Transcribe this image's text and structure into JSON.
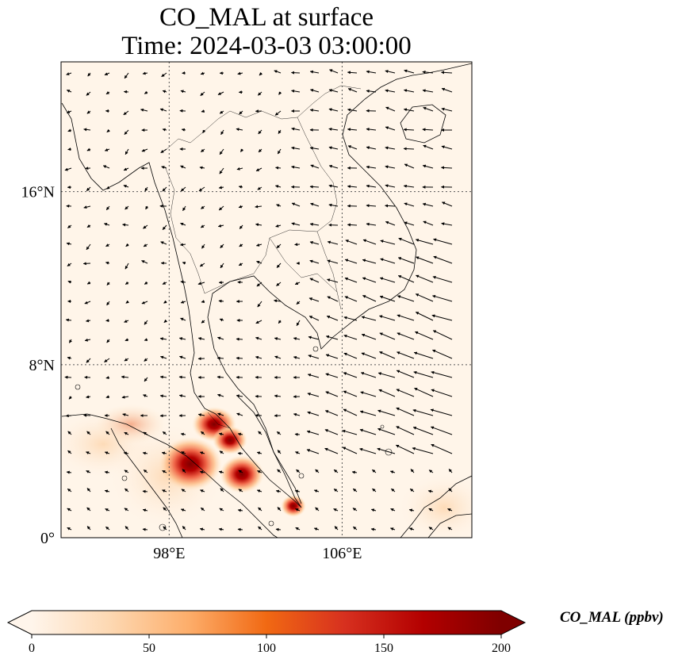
{
  "title": {
    "line1": "CO_MAL at surface",
    "line2": "Time: 2024-03-03 03:00:00"
  },
  "map": {
    "lon_range": [
      93,
      112
    ],
    "lat_range": [
      0,
      22
    ],
    "lat_ticks": [
      {
        "value": 16,
        "label": "16°N"
      },
      {
        "value": 8,
        "label": "8°N"
      },
      {
        "value": 0,
        "label": "0°"
      }
    ],
    "lon_ticks": [
      {
        "value": 98,
        "label": "98°E"
      },
      {
        "value": 106,
        "label": "106°E"
      }
    ],
    "gridlines": "dotted",
    "background_color": "#fff5e9",
    "coastline_color": "#000000"
  },
  "colorbar": {
    "label": "CO_MAL (ppbv)",
    "min": 0,
    "max": 200,
    "ticks": [
      "0",
      "50",
      "100",
      "150",
      "200"
    ],
    "colormap": [
      "#fff5eb",
      "#fdd8b2",
      "#fdae6b",
      "#f16913",
      "#d7301f",
      "#b30000",
      "#7f0000"
    ],
    "extend": "both"
  },
  "chart_data": {
    "type": "heatmap",
    "variable": "CO_MAL",
    "units": "ppbv",
    "hotspots": [
      {
        "lon": 99.0,
        "lat": 3.7,
        "value": 200
      },
      {
        "lon": 100.0,
        "lat": 5.3,
        "value": 140
      },
      {
        "lon": 100.6,
        "lat": 4.6,
        "value": 120
      },
      {
        "lon": 101.3,
        "lat": 3.0,
        "value": 200
      },
      {
        "lon": 104.0,
        "lat": 1.4,
        "value": 110
      },
      {
        "lon": 97.5,
        "lat": 4.6,
        "value": 30
      },
      {
        "lon": 111.0,
        "lat": 0.8,
        "value": 25
      }
    ],
    "wind_field": "vectors"
  }
}
